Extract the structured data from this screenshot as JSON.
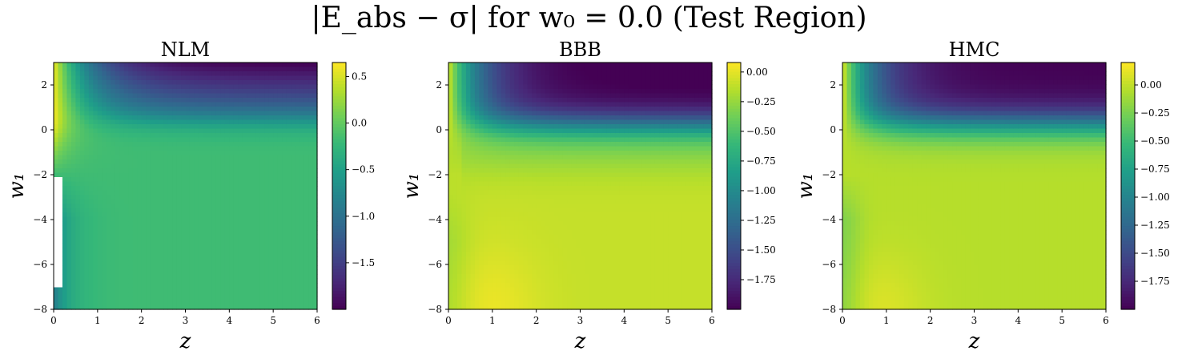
{
  "figure": {
    "suptitle": "|E_abs − σ| for w₀ = 0.0 (Test Region)",
    "colormap": "viridis",
    "colormap_stops": [
      "#440154",
      "#482878",
      "#3e4989",
      "#31688e",
      "#26828e",
      "#1f9e89",
      "#35b779",
      "#6ece58",
      "#b5de2b",
      "#fde725"
    ]
  },
  "chart_data": [
    {
      "type": "heatmap",
      "title": "NLM",
      "xlabel": "z",
      "ylabel": "w₁",
      "xlim": [
        0,
        6
      ],
      "ylim": [
        -8,
        3
      ],
      "x_ticks": [
        "0",
        "1",
        "2",
        "3",
        "4",
        "5",
        "6"
      ],
      "y_ticks": [
        "−8",
        "−6",
        "−4",
        "−2",
        "0",
        "2"
      ],
      "colorbar": {
        "vmin": -2.0,
        "vmax": 0.65,
        "ticks": [
          "0.5",
          "0.0",
          "−0.5",
          "−1.0",
          "−1.5"
        ]
      },
      "approx_values": {
        "top_left_z0_w1_2": 0.6,
        "top_right_z6_w1_3": -2.0,
        "lower_plateau": -0.2,
        "undefined_region": "white gap near z≈0–0.3 for w1 between −7 and −2"
      }
    },
    {
      "type": "heatmap",
      "title": "BBB",
      "xlabel": "z",
      "ylabel": "w₁",
      "xlim": [
        0,
        6
      ],
      "ylim": [
        -8,
        3
      ],
      "x_ticks": [
        "0",
        "1",
        "2",
        "3",
        "4",
        "5",
        "6"
      ],
      "y_ticks": [
        "−8",
        "−6",
        "−4",
        "−2",
        "0",
        "2"
      ],
      "colorbar": {
        "vmin": -2.0,
        "vmax": 0.08,
        "ticks": [
          "0.00",
          "−0.25",
          "−0.50",
          "−0.75",
          "−1.00",
          "−1.25",
          "−1.50",
          "−1.75"
        ]
      },
      "approx_values": {
        "top_left_z0_w1_2": -0.05,
        "top_right_z6_w1_3": -2.0,
        "lower_plateau": -0.1,
        "bottom_peak_z1_w1_-8": 0.05
      }
    },
    {
      "type": "heatmap",
      "title": "HMC",
      "xlabel": "z",
      "ylabel": "w₁",
      "xlim": [
        0,
        6
      ],
      "ylim": [
        -8,
        3
      ],
      "x_ticks": [
        "0",
        "1",
        "2",
        "3",
        "4",
        "5",
        "6"
      ],
      "y_ticks": [
        "−8",
        "−6",
        "−4",
        "−2",
        "0",
        "2"
      ],
      "colorbar": {
        "vmin": -2.0,
        "vmax": 0.2,
        "ticks": [
          "0.00",
          "−0.25",
          "−0.50",
          "−0.75",
          "−1.00",
          "−1.25",
          "−1.50",
          "−1.75"
        ]
      },
      "approx_values": {
        "top_left_z0_w1_2": 0.1,
        "top_right_z6_w1_3": -2.0,
        "lower_plateau": -0.05,
        "bottom_peak_z1_w1_-8": 0.15
      }
    }
  ]
}
